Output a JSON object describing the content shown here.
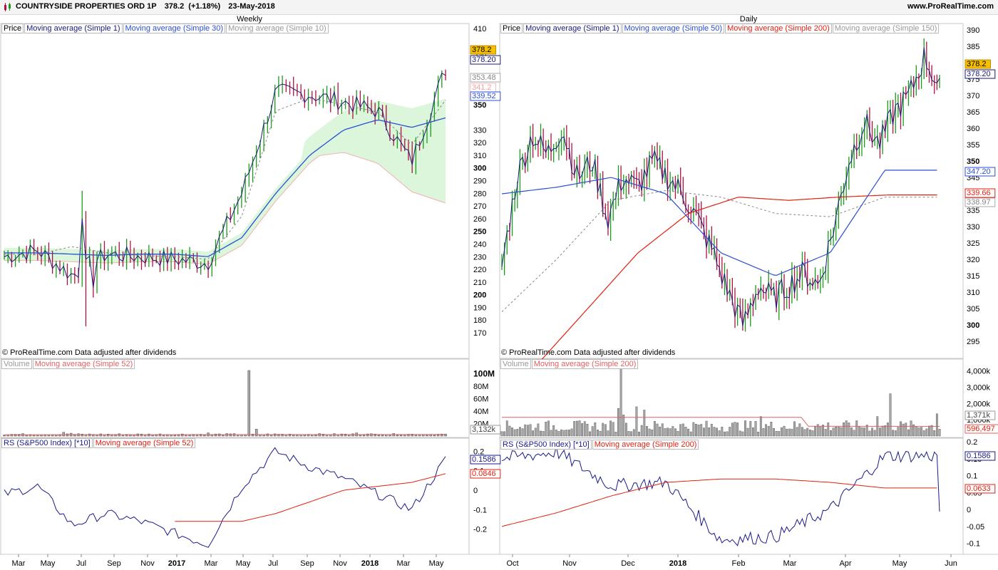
{
  "header": {
    "symbol": "COUNTRYSIDE PROPERTIES ORD 1P",
    "price": "378.2",
    "change": "(+1.18%)",
    "date": "23-May-2018",
    "site": "www.ProRealTime.com"
  },
  "colors": {
    "up": "#1a9a1a",
    "down": "#b01040",
    "ma_fast": "#1a1a7a",
    "ma_mid": "#2b4fd0",
    "ma_long": "#e02010",
    "ma_grey": "#888888",
    "cloud": "#d8f5d8",
    "cloud_red": "#f8dada",
    "rs": "#1a1a8a",
    "vol": "#999999"
  },
  "left": {
    "period": "Weekly",
    "legend": [
      "Price",
      "Moving average (Simple 1)",
      "Moving average (Simple 30)",
      "Moving average (Simple 10)"
    ],
    "copyright": "© ProRealTime.com  Data adjusted after dividends",
    "price_ticks": [
      "410",
      "390",
      "370",
      "350",
      "330",
      "320",
      "310",
      "300",
      "290",
      "280",
      "270",
      "260",
      "250",
      "240",
      "230",
      "220",
      "210",
      "200",
      "190",
      "180",
      "170"
    ],
    "price_tags": [
      "378.2",
      "378.20",
      "353.48",
      "341.2",
      "339.52"
    ],
    "vol_legend": [
      "Volume",
      "Moving average (Simple 52)"
    ],
    "vol_ticks": [
      "100M",
      "80M",
      "60M",
      "40M",
      "20M"
    ],
    "vol_tag": "3,132k",
    "rs_legend": [
      "RS (S&P500 Index) [*10]",
      "Moving average (Simple 52)"
    ],
    "rs_ticks": [
      "0.2",
      "0.1",
      "0",
      "-0.1",
      "-0.2"
    ],
    "rs_tags": [
      "0.1586",
      "0.0846"
    ],
    "x_labels": [
      "Mar",
      "May",
      "Jul",
      "Sep",
      "Nov",
      "2017",
      "Mar",
      "May",
      "Jul",
      "Sep",
      "Nov",
      "2018",
      "Mar",
      "May"
    ]
  },
  "right": {
    "period": "Daily",
    "legend": [
      "Price",
      "Moving average (Simple 1)",
      "Moving average (Simple 50)",
      "Moving average (Simple 200)",
      "Moving average (Simple 150)"
    ],
    "copyright": "© ProRealTime.com  Data adjusted after dividends",
    "price_ticks": [
      "390",
      "385",
      "380",
      "375",
      "370",
      "365",
      "360",
      "355",
      "350",
      "345",
      "340",
      "335",
      "330",
      "325",
      "320",
      "315",
      "310",
      "305",
      "300",
      "295"
    ],
    "price_tags": [
      "378.2",
      "378.20",
      "347.20",
      "339.66",
      "338.97"
    ],
    "vol_legend": [
      "Volume",
      "Moving average (Simple 200)"
    ],
    "vol_ticks": [
      "4,000k",
      "3,000k",
      "2,000k",
      "1,000k"
    ],
    "vol_tags": [
      "1,371k",
      "596,497"
    ],
    "rs_legend": [
      "RS (S&P500 Index) [*10]",
      "Moving average (Simple 200)"
    ],
    "rs_ticks": [
      "0.2",
      "0.15",
      "0.1",
      "0.05",
      "0",
      "-0.05",
      "-0.1"
    ],
    "rs_tags": [
      "0.1586",
      "0.0633"
    ],
    "x_labels": [
      "Oct",
      "Nov",
      "Dec",
      "2018",
      "Feb",
      "Mar",
      "Apr",
      "May",
      "Jun"
    ]
  },
  "chart_data": [
    {
      "type": "line",
      "title": "Weekly",
      "ylim": [
        165,
        412
      ],
      "x": [
        "2016-03",
        "2016-05",
        "2016-07",
        "2016-09",
        "2016-11",
        "2017-01",
        "2017-03",
        "2017-05",
        "2017-07",
        "2017-09",
        "2017-11",
        "2018-01",
        "2018-03",
        "2018-05"
      ],
      "series": [
        {
          "name": "Moving average (Simple 1)",
          "values": [
            230,
            235,
            215,
            232,
            230,
            228,
            225,
            280,
            360,
            358,
            352,
            345,
            305,
            378
          ]
        },
        {
          "name": "Moving average (Simple 30)",
          "values": [
            null,
            233,
            232,
            231,
            232,
            232,
            230,
            245,
            280,
            310,
            330,
            338,
            332,
            339.52
          ]
        },
        {
          "name": "Moving average (Simple 10)",
          "values": [
            null,
            232,
            238,
            233,
            231,
            230,
            228,
            262,
            345,
            355,
            350,
            344,
            318,
            353.48
          ]
        }
      ]
    },
    {
      "type": "bar",
      "title": "Weekly Volume",
      "ylim": [
        0,
        110
      ],
      "categories": [
        "2016-03",
        "2016-05",
        "2016-07",
        "2016-09",
        "2016-11",
        "2017-01",
        "2017-03",
        "2017-05",
        "2017-07",
        "2017-09",
        "2017-11",
        "2018-01",
        "2018-03",
        "2018-05"
      ],
      "values": [
        4,
        3,
        6,
        2,
        3,
        2,
        4,
        105,
        9,
        3,
        3,
        4,
        3,
        3
      ]
    },
    {
      "type": "line",
      "title": "Weekly RS",
      "ylim": [
        -0.3,
        0.25
      ],
      "x": [
        "2016-03",
        "2016-05",
        "2016-07",
        "2016-09",
        "2016-11",
        "2017-01",
        "2017-03",
        "2017-05",
        "2017-07",
        "2017-09",
        "2017-11",
        "2018-01",
        "2018-03",
        "2018-05"
      ],
      "series": [
        {
          "name": "RS (S&P500 Index) [*10]",
          "values": [
            -0.02,
            0.02,
            -0.18,
            -0.12,
            -0.16,
            -0.22,
            -0.28,
            0.02,
            0.2,
            0.12,
            0.06,
            -0.02,
            -0.1,
            0.1586
          ]
        },
        {
          "name": "Moving average (Simple 52)",
          "values": [
            null,
            null,
            null,
            null,
            null,
            null,
            -0.16,
            -0.16,
            -0.12,
            -0.06,
            0.0,
            0.02,
            0.04,
            0.0846
          ]
        }
      ]
    },
    {
      "type": "line",
      "title": "Daily",
      "ylim": [
        292,
        392
      ],
      "x": [
        "2017-10",
        "2017-11",
        "2017-12",
        "2018-01",
        "2018-02",
        "2018-03",
        "2018-04",
        "2018-05",
        "2018-06"
      ],
      "series": [
        {
          "name": "Moving average (Simple 1)",
          "values": [
            352,
            360,
            340,
            350,
            310,
            305,
            332,
            378,
            null
          ]
        },
        {
          "name": "Moving average (Simple 50)",
          "values": [
            340,
            342,
            345,
            340,
            322,
            315,
            322,
            347.2,
            null
          ]
        },
        {
          "name": "Moving average (Simple 200)",
          "values": [
            288,
            305,
            322,
            334,
            339,
            338,
            339,
            339.66,
            null
          ]
        },
        {
          "name": "Moving average (Simple 150)",
          "values": [
            304,
            320,
            338,
            341,
            339,
            334,
            333,
            338.97,
            null
          ]
        }
      ]
    },
    {
      "type": "bar",
      "title": "Daily Volume",
      "ylim": [
        0,
        4500
      ],
      "categories": [
        "2017-10",
        "2017-11",
        "2017-12",
        "2018-01",
        "2018-02",
        "2018-03",
        "2018-04",
        "2018-05"
      ],
      "values": [
        700,
        650,
        4200,
        800,
        900,
        700,
        600,
        1371
      ]
    },
    {
      "type": "line",
      "title": "Daily RS",
      "ylim": [
        -0.13,
        0.22
      ],
      "x": [
        "2017-10",
        "2017-11",
        "2017-12",
        "2018-01",
        "2018-02",
        "2018-03",
        "2018-04",
        "2018-05",
        "2018-06"
      ],
      "series": [
        {
          "name": "RS (S&P500 Index) [*10]",
          "values": [
            0.15,
            0.17,
            0.07,
            0.08,
            -0.09,
            -0.08,
            0.0,
            0.1586,
            null
          ]
        },
        {
          "name": "Moving average (Simple 200)",
          "values": [
            -0.05,
            -0.01,
            0.04,
            0.08,
            0.09,
            0.09,
            0.08,
            0.0633,
            null
          ]
        }
      ]
    }
  ]
}
